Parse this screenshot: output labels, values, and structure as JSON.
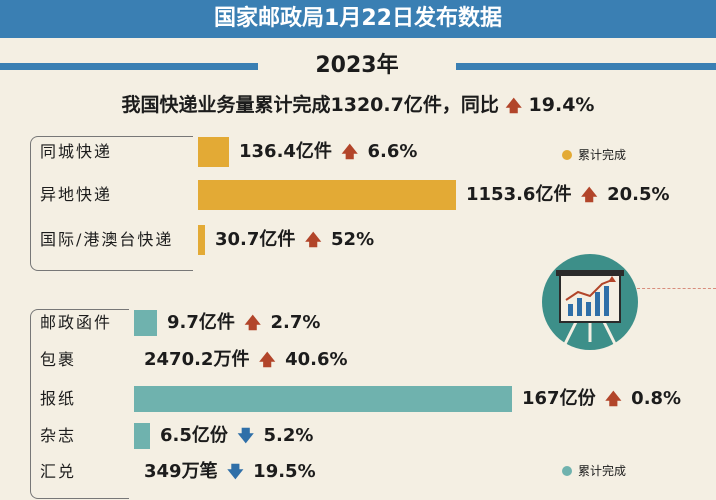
{
  "header": {
    "title": "国家邮政局1月22日发布数据"
  },
  "year": "2023年",
  "summary": {
    "text": "我国快递业务量累计完成1320.7亿件，同比",
    "arrow": "up",
    "change": "19.4%"
  },
  "colors": {
    "header": "#3a7fb3",
    "express_bar": "#e3aa35",
    "postal_bar": "#6fb2ae",
    "increase_arrow": "#b2452a",
    "decrease_arrow": "#2f6fa8",
    "background": "#f4efe3"
  },
  "chart_data": [
    {
      "type": "bar",
      "orientation": "horizontal",
      "legend": "累计完成",
      "legend_position": "top-right",
      "categories": [
        "同城快递",
        "异地快递",
        "国际/港澳台快递"
      ],
      "values": [
        136.4,
        1153.6,
        30.7
      ],
      "unit": "亿件",
      "value_labels": [
        "136.4亿件",
        "1153.6亿件",
        "30.7亿件"
      ],
      "changes": [
        "6.6%",
        "20.5%",
        "52%"
      ],
      "change_direction": [
        "up",
        "up",
        "up"
      ]
    },
    {
      "type": "bar",
      "orientation": "horizontal",
      "legend": "累计完成",
      "legend_position": "bottom-right",
      "categories": [
        "邮政函件",
        "包裹",
        "报纸",
        "杂志",
        "汇兑"
      ],
      "value_labels": [
        "9.7亿件",
        "2470.2万件",
        "167亿份",
        "6.5亿份",
        "349万笔"
      ],
      "values": [
        9.7,
        2470.2,
        167,
        6.5,
        349
      ],
      "units": [
        "亿件",
        "万件",
        "亿份",
        "亿份",
        "万笔"
      ],
      "bar_level": [
        0.06,
        0.0,
        1.0,
        0.04,
        0.0
      ],
      "changes": [
        "2.7%",
        "40.6%",
        "0.8%",
        "5.2%",
        "19.5%"
      ],
      "change_direction": [
        "up",
        "up",
        "up",
        "down",
        "down"
      ]
    }
  ],
  "icon": "presentation-board-growth-chart-icon"
}
